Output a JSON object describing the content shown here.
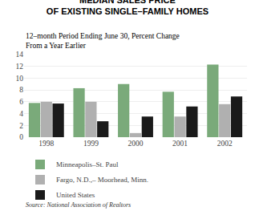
{
  "chart_data": {
    "type": "bar",
    "title": "MEDIAN SALES PRICE\nOF EXISTING SINGLE–FAMILY HOMES",
    "subtitle": "12–month Period Ending June 30, Percent Change From a Year Earlier",
    "annotations": [
      "Source: National Association of Realtors"
    ],
    "categories": [
      "1998",
      "1999",
      "2000",
      "2001",
      "2002"
    ],
    "series": [
      {
        "name": "Minneapolis–St. Paul",
        "color": "#7aaa7a",
        "values": [
          5.8,
          8.3,
          9.0,
          7.7,
          12.3
        ]
      },
      {
        "name": "Fargo, N.D.,– Moorhead, Minn.",
        "color": "#b0b0b0",
        "values": [
          6.0,
          6.0,
          0.7,
          3.5,
          5.6
        ]
      },
      {
        "name": "United States",
        "color": "#1a1a1a",
        "values": [
          5.7,
          2.7,
          3.5,
          5.2,
          6.9
        ]
      }
    ],
    "ylim": [
      0,
      14
    ],
    "yticks": [
      0,
      2,
      4,
      6,
      8,
      10,
      12,
      14
    ],
    "grid": true,
    "legend": "bottom"
  }
}
